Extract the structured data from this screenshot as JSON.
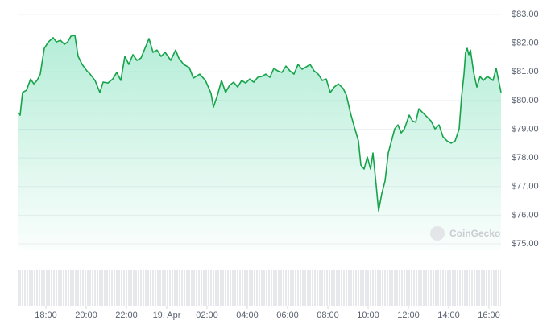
{
  "chart_data": {
    "type": "line",
    "watermark": "CoinGecko",
    "color": "#16a34a",
    "grid": true,
    "xlim": [
      16.6,
      40.6
    ],
    "ylim": [
      75,
      83
    ],
    "xticks": [
      {
        "value": 18,
        "label": "18:00"
      },
      {
        "value": 20,
        "label": "20:00"
      },
      {
        "value": 22,
        "label": "22:00"
      },
      {
        "value": 24,
        "label": "19. Apr"
      },
      {
        "value": 26,
        "label": "02:00"
      },
      {
        "value": 28,
        "label": "04:00"
      },
      {
        "value": 30,
        "label": "06:00"
      },
      {
        "value": 32,
        "label": "08:00"
      },
      {
        "value": 34,
        "label": "10:00"
      },
      {
        "value": 36,
        "label": "12:00"
      },
      {
        "value": 38,
        "label": "14:00"
      },
      {
        "value": 40,
        "label": "16:00"
      }
    ],
    "yticks": [
      {
        "value": 83,
        "label": "$83.00"
      },
      {
        "value": 82,
        "label": "$82.00"
      },
      {
        "value": 81,
        "label": "$81.00"
      },
      {
        "value": 80,
        "label": "$80.00"
      },
      {
        "value": 79,
        "label": "$79.00"
      },
      {
        "value": 78,
        "label": "$78.00"
      },
      {
        "value": 77,
        "label": "$77.00"
      },
      {
        "value": 76,
        "label": "$76.00"
      },
      {
        "value": 75,
        "label": "$75.00"
      }
    ],
    "x": [
      16.6,
      16.72,
      16.84,
      17.04,
      17.24,
      17.4,
      17.56,
      17.72,
      17.92,
      18.12,
      18.36,
      18.52,
      18.72,
      18.92,
      19.08,
      19.24,
      19.44,
      19.6,
      19.8,
      20.04,
      20.2,
      20.44,
      20.68,
      20.84,
      21.08,
      21.32,
      21.52,
      21.72,
      21.92,
      22.12,
      22.32,
      22.52,
      22.72,
      22.92,
      23.12,
      23.32,
      23.52,
      23.72,
      23.92,
      24.2,
      24.44,
      24.6,
      24.84,
      25.12,
      25.32,
      25.64,
      25.92,
      26.2,
      26.32,
      26.52,
      26.72,
      26.92,
      27.12,
      27.32,
      27.52,
      27.72,
      27.92,
      28.12,
      28.32,
      28.52,
      28.72,
      28.92,
      29.12,
      29.32,
      29.52,
      29.72,
      29.92,
      30.12,
      30.32,
      30.52,
      30.72,
      30.92,
      31.12,
      31.32,
      31.52,
      31.72,
      31.92,
      32.12,
      32.32,
      32.52,
      32.76,
      32.92,
      33.12,
      33.32,
      33.52,
      33.64,
      33.8,
      33.96,
      34.12,
      34.24,
      34.4,
      34.52,
      34.68,
      34.84,
      35.0,
      35.16,
      35.32,
      35.48,
      35.64,
      35.8,
      36.04,
      36.2,
      36.36,
      36.52,
      36.72,
      36.92,
      37.12,
      37.32,
      37.52,
      37.72,
      37.92,
      38.12,
      38.32,
      38.52,
      38.64,
      38.76,
      38.84,
      38.92,
      39.0,
      39.08,
      39.24,
      39.4,
      39.56,
      39.72,
      39.92,
      40.2,
      40.36,
      40.6
    ],
    "values": [
      79.57,
      79.49,
      80.28,
      80.36,
      80.75,
      80.58,
      80.7,
      80.92,
      81.82,
      82.04,
      82.19,
      82.04,
      82.1,
      81.96,
      82.04,
      82.24,
      82.27,
      81.54,
      81.26,
      81.03,
      80.92,
      80.7,
      80.28,
      80.64,
      80.61,
      80.75,
      80.98,
      80.7,
      81.54,
      81.26,
      81.6,
      81.4,
      81.48,
      81.82,
      82.16,
      81.68,
      81.76,
      81.54,
      81.68,
      81.4,
      81.76,
      81.48,
      81.26,
      81.15,
      80.78,
      80.92,
      80.7,
      80.25,
      79.77,
      80.19,
      80.7,
      80.28,
      80.53,
      80.64,
      80.47,
      80.7,
      80.61,
      80.75,
      80.64,
      80.81,
      80.84,
      80.92,
      80.81,
      81.12,
      81.03,
      80.98,
      81.2,
      81.03,
      80.92,
      81.26,
      81.09,
      81.17,
      81.26,
      81.03,
      80.92,
      80.7,
      80.75,
      80.28,
      80.47,
      80.58,
      80.42,
      80.19,
      79.57,
      79.07,
      78.59,
      77.75,
      77.61,
      78.03,
      77.61,
      78.17,
      77.04,
      76.15,
      76.76,
      77.19,
      78.17,
      78.59,
      79.01,
      79.15,
      78.87,
      79.01,
      79.49,
      79.29,
      79.24,
      79.71,
      79.57,
      79.43,
      79.29,
      79.01,
      79.15,
      78.73,
      78.59,
      78.51,
      78.59,
      79.01,
      80.13,
      80.92,
      81.68,
      81.82,
      81.6,
      81.76,
      80.98,
      80.47,
      80.84,
      80.7,
      80.84,
      80.7,
      81.12,
      80.28
    ]
  }
}
